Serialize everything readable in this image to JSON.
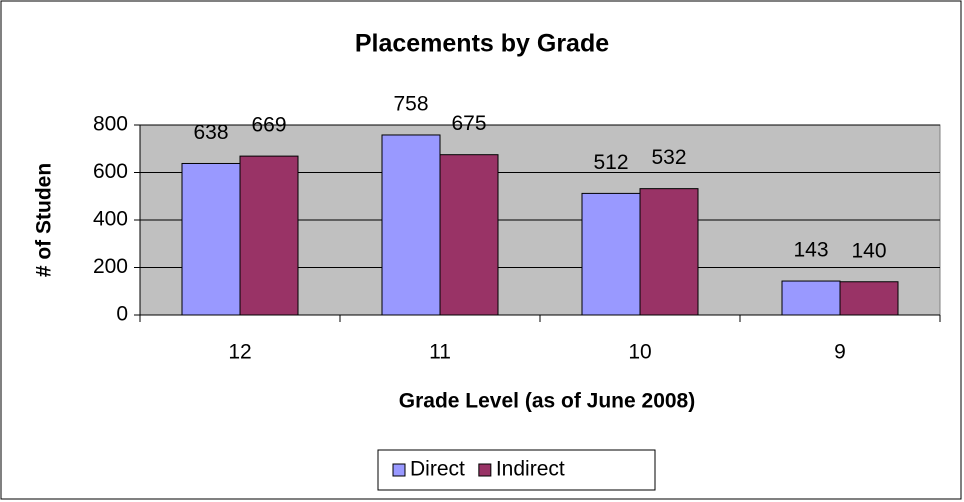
{
  "chart_data": {
    "type": "bar",
    "title": "Placements by Grade",
    "x_label": "Grade Level (as of June 2008)",
    "y_label": "# of Studen",
    "categories": [
      "12",
      "11",
      "10",
      "9"
    ],
    "series": [
      {
        "name": "Direct",
        "color": "#9999ff",
        "values": [
          638,
          758,
          512,
          143
        ]
      },
      {
        "name": "Indirect",
        "color": "#993366",
        "values": [
          669,
          675,
          532,
          140
        ]
      }
    ],
    "ylim": [
      0,
      800
    ],
    "yticks": [
      0,
      200,
      400,
      600,
      800
    ],
    "grid": true,
    "plot_background": "#c0c0c0",
    "legend": "bottom"
  }
}
